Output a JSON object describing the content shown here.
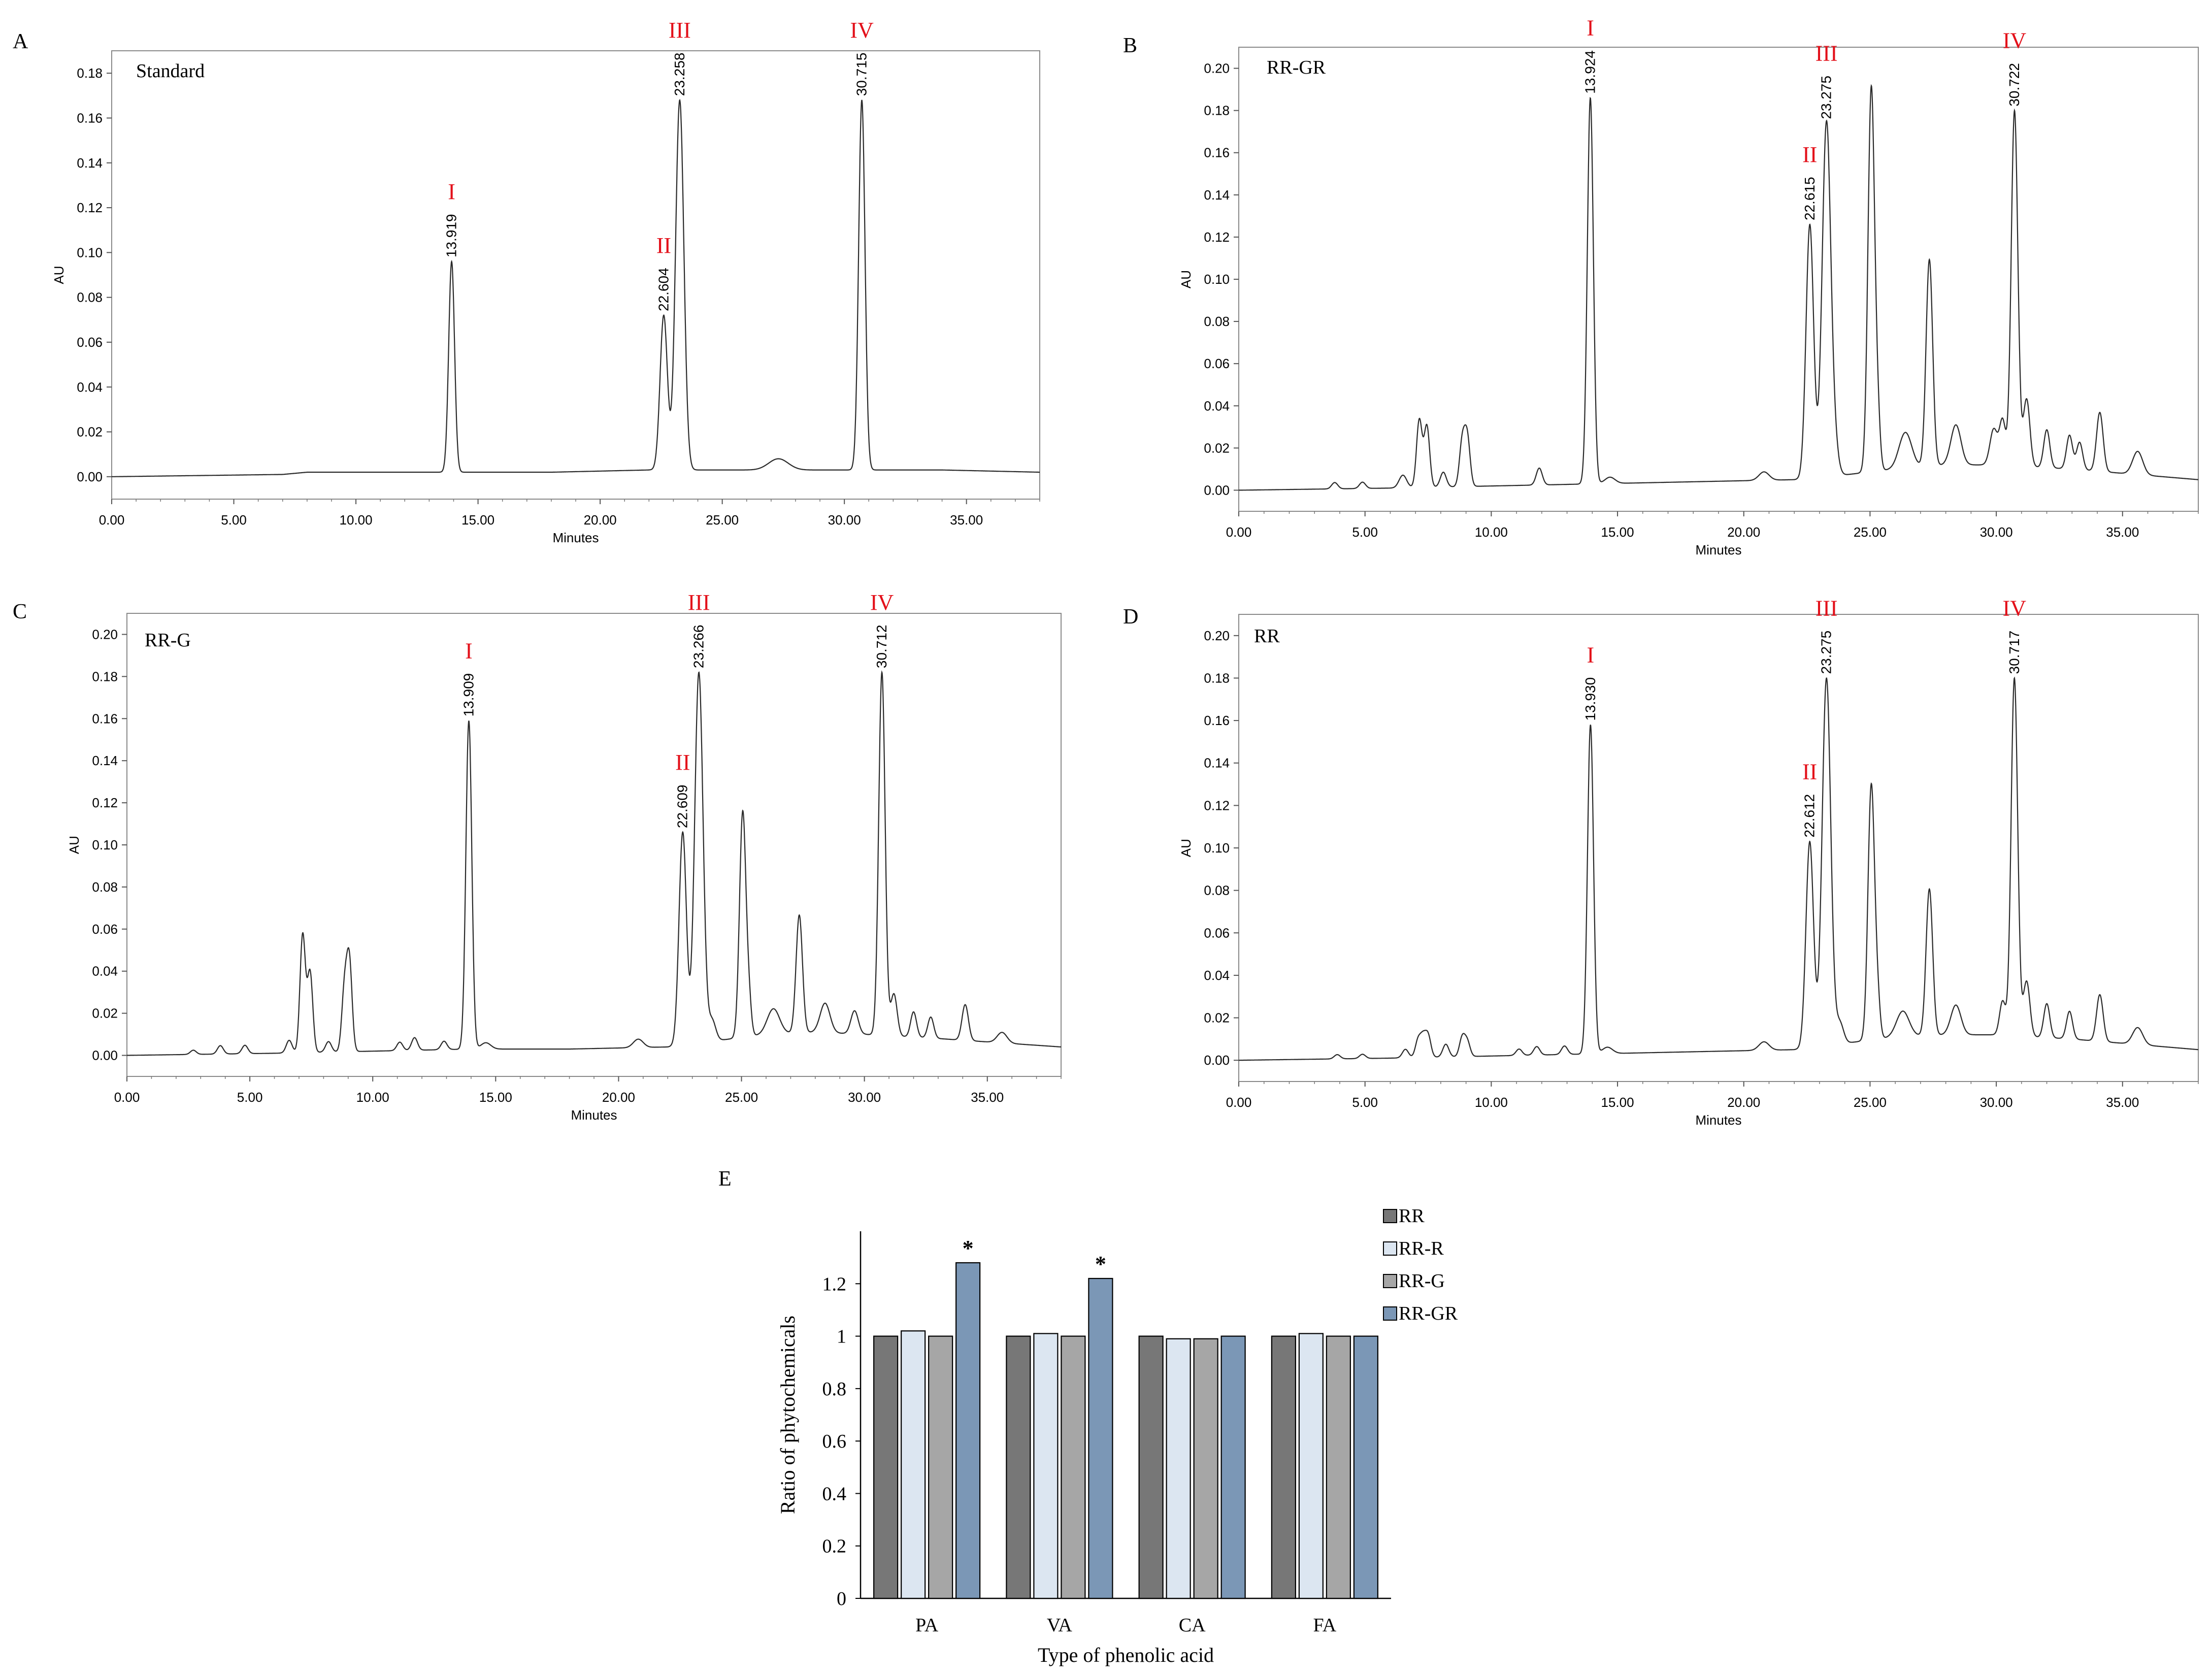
{
  "chart_data": [
    {
      "panel": "A",
      "type": "line",
      "title": "Standard",
      "xlabel": "Minutes",
      "ylabel": "AU",
      "xlim": [
        0,
        38
      ],
      "ylim": [
        -0.01,
        0.19
      ],
      "xticks": [
        "0.00",
        "5.00",
        "10.00",
        "15.00",
        "20.00",
        "25.00",
        "30.00",
        "35.00"
      ],
      "yticks": [
        "0.00",
        "0.02",
        "0.04",
        "0.06",
        "0.08",
        "0.10",
        "0.12",
        "0.14",
        "0.16",
        "0.18"
      ],
      "baseline": [
        [
          0,
          0.0
        ],
        [
          7,
          0.001
        ],
        [
          8,
          0.002
        ],
        [
          13,
          0.002
        ],
        [
          18,
          0.002
        ],
        [
          22,
          0.003
        ],
        [
          25,
          0.003
        ],
        [
          30,
          0.003
        ],
        [
          34,
          0.003
        ],
        [
          38,
          0.002
        ]
      ],
      "small_peaks": [
        [
          27.3,
          0.005,
          0.4
        ]
      ],
      "peaks": [
        {
          "label": "I",
          "rt": "13.919",
          "x": 13.919,
          "y": 0.096,
          "w": 0.12
        },
        {
          "label": "II",
          "rt": "22.604",
          "x": 22.604,
          "y": 0.072,
          "w": 0.15
        },
        {
          "label": "III",
          "rt": "23.258",
          "x": 23.258,
          "y": 0.168,
          "w": 0.17
        },
        {
          "label": "IV",
          "rt": "30.715",
          "x": 30.715,
          "y": 0.168,
          "w": 0.13
        }
      ]
    },
    {
      "panel": "B",
      "type": "line",
      "title": "RR-GR",
      "xlabel": "Minutes",
      "ylabel": "AU",
      "xlim": [
        0,
        38
      ],
      "ylim": [
        -0.01,
        0.21
      ],
      "xticks": [
        "0.00",
        "5.00",
        "10.00",
        "15.00",
        "20.00",
        "25.00",
        "30.00",
        "35.00"
      ],
      "yticks": [
        "0.00",
        "0.02",
        "0.04",
        "0.06",
        "0.08",
        "0.10",
        "0.12",
        "0.14",
        "0.16",
        "0.18",
        "0.20"
      ],
      "baseline": [
        [
          0,
          0.0
        ],
        [
          6,
          0.001
        ],
        [
          10,
          0.002
        ],
        [
          14,
          0.003
        ],
        [
          18,
          0.004
        ],
        [
          22,
          0.005
        ],
        [
          23.8,
          0.007
        ],
        [
          26,
          0.01
        ],
        [
          28,
          0.012
        ],
        [
          30,
          0.012
        ],
        [
          33,
          0.01
        ],
        [
          38,
          0.005
        ]
      ],
      "small_peaks": [
        [
          3.8,
          0.003,
          0.12
        ],
        [
          4.9,
          0.003,
          0.12
        ],
        [
          6.5,
          0.006,
          0.15
        ],
        [
          7.15,
          0.032,
          0.11
        ],
        [
          7.45,
          0.029,
          0.11
        ],
        [
          8.1,
          0.007,
          0.12
        ],
        [
          8.85,
          0.021,
          0.11
        ],
        [
          9.05,
          0.023,
          0.11
        ],
        [
          11.9,
          0.008,
          0.12
        ],
        [
          14.7,
          0.003,
          0.2
        ],
        [
          20.8,
          0.004,
          0.2
        ],
        [
          23.6,
          0.012,
          0.15
        ],
        [
          25.05,
          0.182,
          0.13
        ],
        [
          25.3,
          0.024,
          0.1
        ],
        [
          26.4,
          0.017,
          0.25
        ],
        [
          27.35,
          0.098,
          0.13
        ],
        [
          28.4,
          0.019,
          0.2
        ],
        [
          29.9,
          0.017,
          0.15
        ],
        [
          30.25,
          0.021,
          0.12
        ],
        [
          31.2,
          0.032,
          0.13
        ],
        [
          32.0,
          0.018,
          0.12
        ],
        [
          32.9,
          0.016,
          0.12
        ],
        [
          33.3,
          0.013,
          0.12
        ],
        [
          34.1,
          0.028,
          0.13
        ],
        [
          35.6,
          0.011,
          0.2
        ]
      ],
      "peaks": [
        {
          "label": "I",
          "rt": "13.924",
          "x": 13.924,
          "y": 0.186,
          "w": 0.12
        },
        {
          "label": "II",
          "rt": "22.615",
          "x": 22.615,
          "y": 0.126,
          "w": 0.15
        },
        {
          "label": "III",
          "rt": "23.275",
          "x": 23.275,
          "y": 0.174,
          "w": 0.17
        },
        {
          "label": "IV",
          "rt": "30.722",
          "x": 30.722,
          "y": 0.18,
          "w": 0.13
        }
      ]
    },
    {
      "panel": "C",
      "type": "line",
      "title": "RR-G",
      "xlabel": "Minutes",
      "ylabel": "AU",
      "xlim": [
        0,
        38
      ],
      "ylim": [
        -0.01,
        0.21
      ],
      "xticks": [
        "0.00",
        "5.00",
        "10.00",
        "15.00",
        "20.00",
        "25.00",
        "30.00",
        "35.00"
      ],
      "yticks": [
        "0.00",
        "0.02",
        "0.04",
        "0.06",
        "0.08",
        "0.10",
        "0.12",
        "0.14",
        "0.16",
        "0.18",
        "0.20"
      ],
      "baseline": [
        [
          0,
          0.0
        ],
        [
          6,
          0.001
        ],
        [
          10,
          0.002
        ],
        [
          14,
          0.003
        ],
        [
          18,
          0.003
        ],
        [
          22,
          0.004
        ],
        [
          24,
          0.007
        ],
        [
          26,
          0.01
        ],
        [
          28,
          0.011
        ],
        [
          30,
          0.01
        ],
        [
          33,
          0.008
        ],
        [
          38,
          0.004
        ]
      ],
      "small_peaks": [
        [
          2.7,
          0.002,
          0.12
        ],
        [
          3.8,
          0.004,
          0.12
        ],
        [
          4.8,
          0.004,
          0.12
        ],
        [
          6.6,
          0.006,
          0.12
        ],
        [
          7.15,
          0.056,
          0.11
        ],
        [
          7.45,
          0.038,
          0.11
        ],
        [
          8.2,
          0.005,
          0.12
        ],
        [
          8.85,
          0.029,
          0.11
        ],
        [
          9.05,
          0.042,
          0.11
        ],
        [
          11.1,
          0.004,
          0.12
        ],
        [
          11.7,
          0.006,
          0.12
        ],
        [
          12.9,
          0.004,
          0.12
        ],
        [
          14.6,
          0.003,
          0.2
        ],
        [
          20.8,
          0.004,
          0.2
        ],
        [
          23.8,
          0.01,
          0.15
        ],
        [
          25.05,
          0.107,
          0.13
        ],
        [
          25.3,
          0.016,
          0.1
        ],
        [
          26.3,
          0.012,
          0.25
        ],
        [
          27.35,
          0.056,
          0.13
        ],
        [
          28.4,
          0.014,
          0.2
        ],
        [
          29.6,
          0.011,
          0.15
        ],
        [
          31.2,
          0.02,
          0.13
        ],
        [
          32.0,
          0.012,
          0.12
        ],
        [
          32.7,
          0.01,
          0.12
        ],
        [
          34.1,
          0.017,
          0.13
        ],
        [
          35.6,
          0.005,
          0.2
        ]
      ],
      "peaks": [
        {
          "label": "I",
          "rt": "13.909",
          "x": 13.909,
          "y": 0.159,
          "w": 0.12
        },
        {
          "label": "II",
          "rt": "22.609",
          "x": 22.609,
          "y": 0.106,
          "w": 0.15
        },
        {
          "label": "III",
          "rt": "23.266",
          "x": 23.266,
          "y": 0.182,
          "w": 0.17
        },
        {
          "label": "IV",
          "rt": "30.712",
          "x": 30.712,
          "y": 0.182,
          "w": 0.13
        }
      ]
    },
    {
      "panel": "D",
      "type": "line",
      "title": "RR",
      "xlabel": "Minutes",
      "ylabel": "AU",
      "xlim": [
        0,
        38
      ],
      "ylim": [
        -0.01,
        0.21
      ],
      "xticks": [
        "0.00",
        "5.00",
        "10.00",
        "15.00",
        "20.00",
        "25.00",
        "30.00",
        "35.00"
      ],
      "yticks": [
        "0.00",
        "0.02",
        "0.04",
        "0.06",
        "0.08",
        "0.10",
        "0.12",
        "0.14",
        "0.16",
        "0.18",
        "0.20"
      ],
      "baseline": [
        [
          0,
          0.0
        ],
        [
          6,
          0.001
        ],
        [
          10,
          0.002
        ],
        [
          14,
          0.003
        ],
        [
          18,
          0.004
        ],
        [
          22,
          0.005
        ],
        [
          24,
          0.008
        ],
        [
          26,
          0.011
        ],
        [
          28,
          0.012
        ],
        [
          30,
          0.012
        ],
        [
          33,
          0.01
        ],
        [
          38,
          0.005
        ]
      ],
      "small_peaks": [
        [
          3.9,
          0.002,
          0.12
        ],
        [
          4.9,
          0.002,
          0.12
        ],
        [
          6.6,
          0.004,
          0.12
        ],
        [
          7.1,
          0.008,
          0.11
        ],
        [
          7.3,
          0.009,
          0.11
        ],
        [
          7.5,
          0.01,
          0.11
        ],
        [
          8.2,
          0.006,
          0.12
        ],
        [
          8.85,
          0.009,
          0.11
        ],
        [
          9.05,
          0.007,
          0.11
        ],
        [
          11.1,
          0.003,
          0.12
        ],
        [
          11.8,
          0.004,
          0.12
        ],
        [
          12.9,
          0.004,
          0.12
        ],
        [
          14.6,
          0.003,
          0.2
        ],
        [
          20.8,
          0.004,
          0.2
        ],
        [
          23.8,
          0.01,
          0.15
        ],
        [
          25.05,
          0.12,
          0.13
        ],
        [
          25.3,
          0.017,
          0.1
        ],
        [
          26.3,
          0.012,
          0.25
        ],
        [
          27.35,
          0.069,
          0.13
        ],
        [
          28.4,
          0.014,
          0.2
        ],
        [
          30.25,
          0.016,
          0.12
        ],
        [
          31.2,
          0.026,
          0.13
        ],
        [
          32.0,
          0.016,
          0.12
        ],
        [
          32.9,
          0.013,
          0.12
        ],
        [
          34.1,
          0.022,
          0.13
        ],
        [
          35.6,
          0.008,
          0.2
        ]
      ],
      "peaks": [
        {
          "label": "I",
          "rt": "13.930",
          "x": 13.93,
          "y": 0.158,
          "w": 0.12
        },
        {
          "label": "II",
          "rt": "22.612",
          "x": 22.612,
          "y": 0.103,
          "w": 0.15
        },
        {
          "label": "III",
          "rt": "23.275",
          "x": 23.275,
          "y": 0.18,
          "w": 0.17
        },
        {
          "label": "IV",
          "rt": "30.717",
          "x": 30.717,
          "y": 0.18,
          "w": 0.13
        }
      ]
    },
    {
      "panel": "E",
      "type": "bar",
      "xlabel": "Type of phenolic acid",
      "ylabel": "Ratio of phytochemicals",
      "ylim": [
        0,
        1.4
      ],
      "yticks": [
        "0",
        "0.2",
        "0.4",
        "0.6",
        "0.8",
        "1",
        "1.2"
      ],
      "categories": [
        "PA",
        "VA",
        "CA",
        "FA"
      ],
      "series": [
        {
          "name": "RR",
          "color": "#777777",
          "values": [
            1.0,
            1.0,
            1.0,
            1.0
          ]
        },
        {
          "name": "RR-R",
          "color": "#dce6f1",
          "values": [
            1.02,
            1.01,
            0.99,
            1.01
          ]
        },
        {
          "name": "RR-G",
          "color": "#a6a6a6",
          "values": [
            1.0,
            1.0,
            0.99,
            1.0
          ]
        },
        {
          "name": "RR-GR",
          "color": "#7b97b6",
          "values": [
            1.28,
            1.22,
            1.0,
            1.0
          ]
        }
      ],
      "significance": [
        {
          "category": "PA",
          "series": "RR-GR",
          "mark": "*"
        },
        {
          "category": "VA",
          "series": "RR-GR",
          "mark": "*"
        }
      ]
    }
  ]
}
